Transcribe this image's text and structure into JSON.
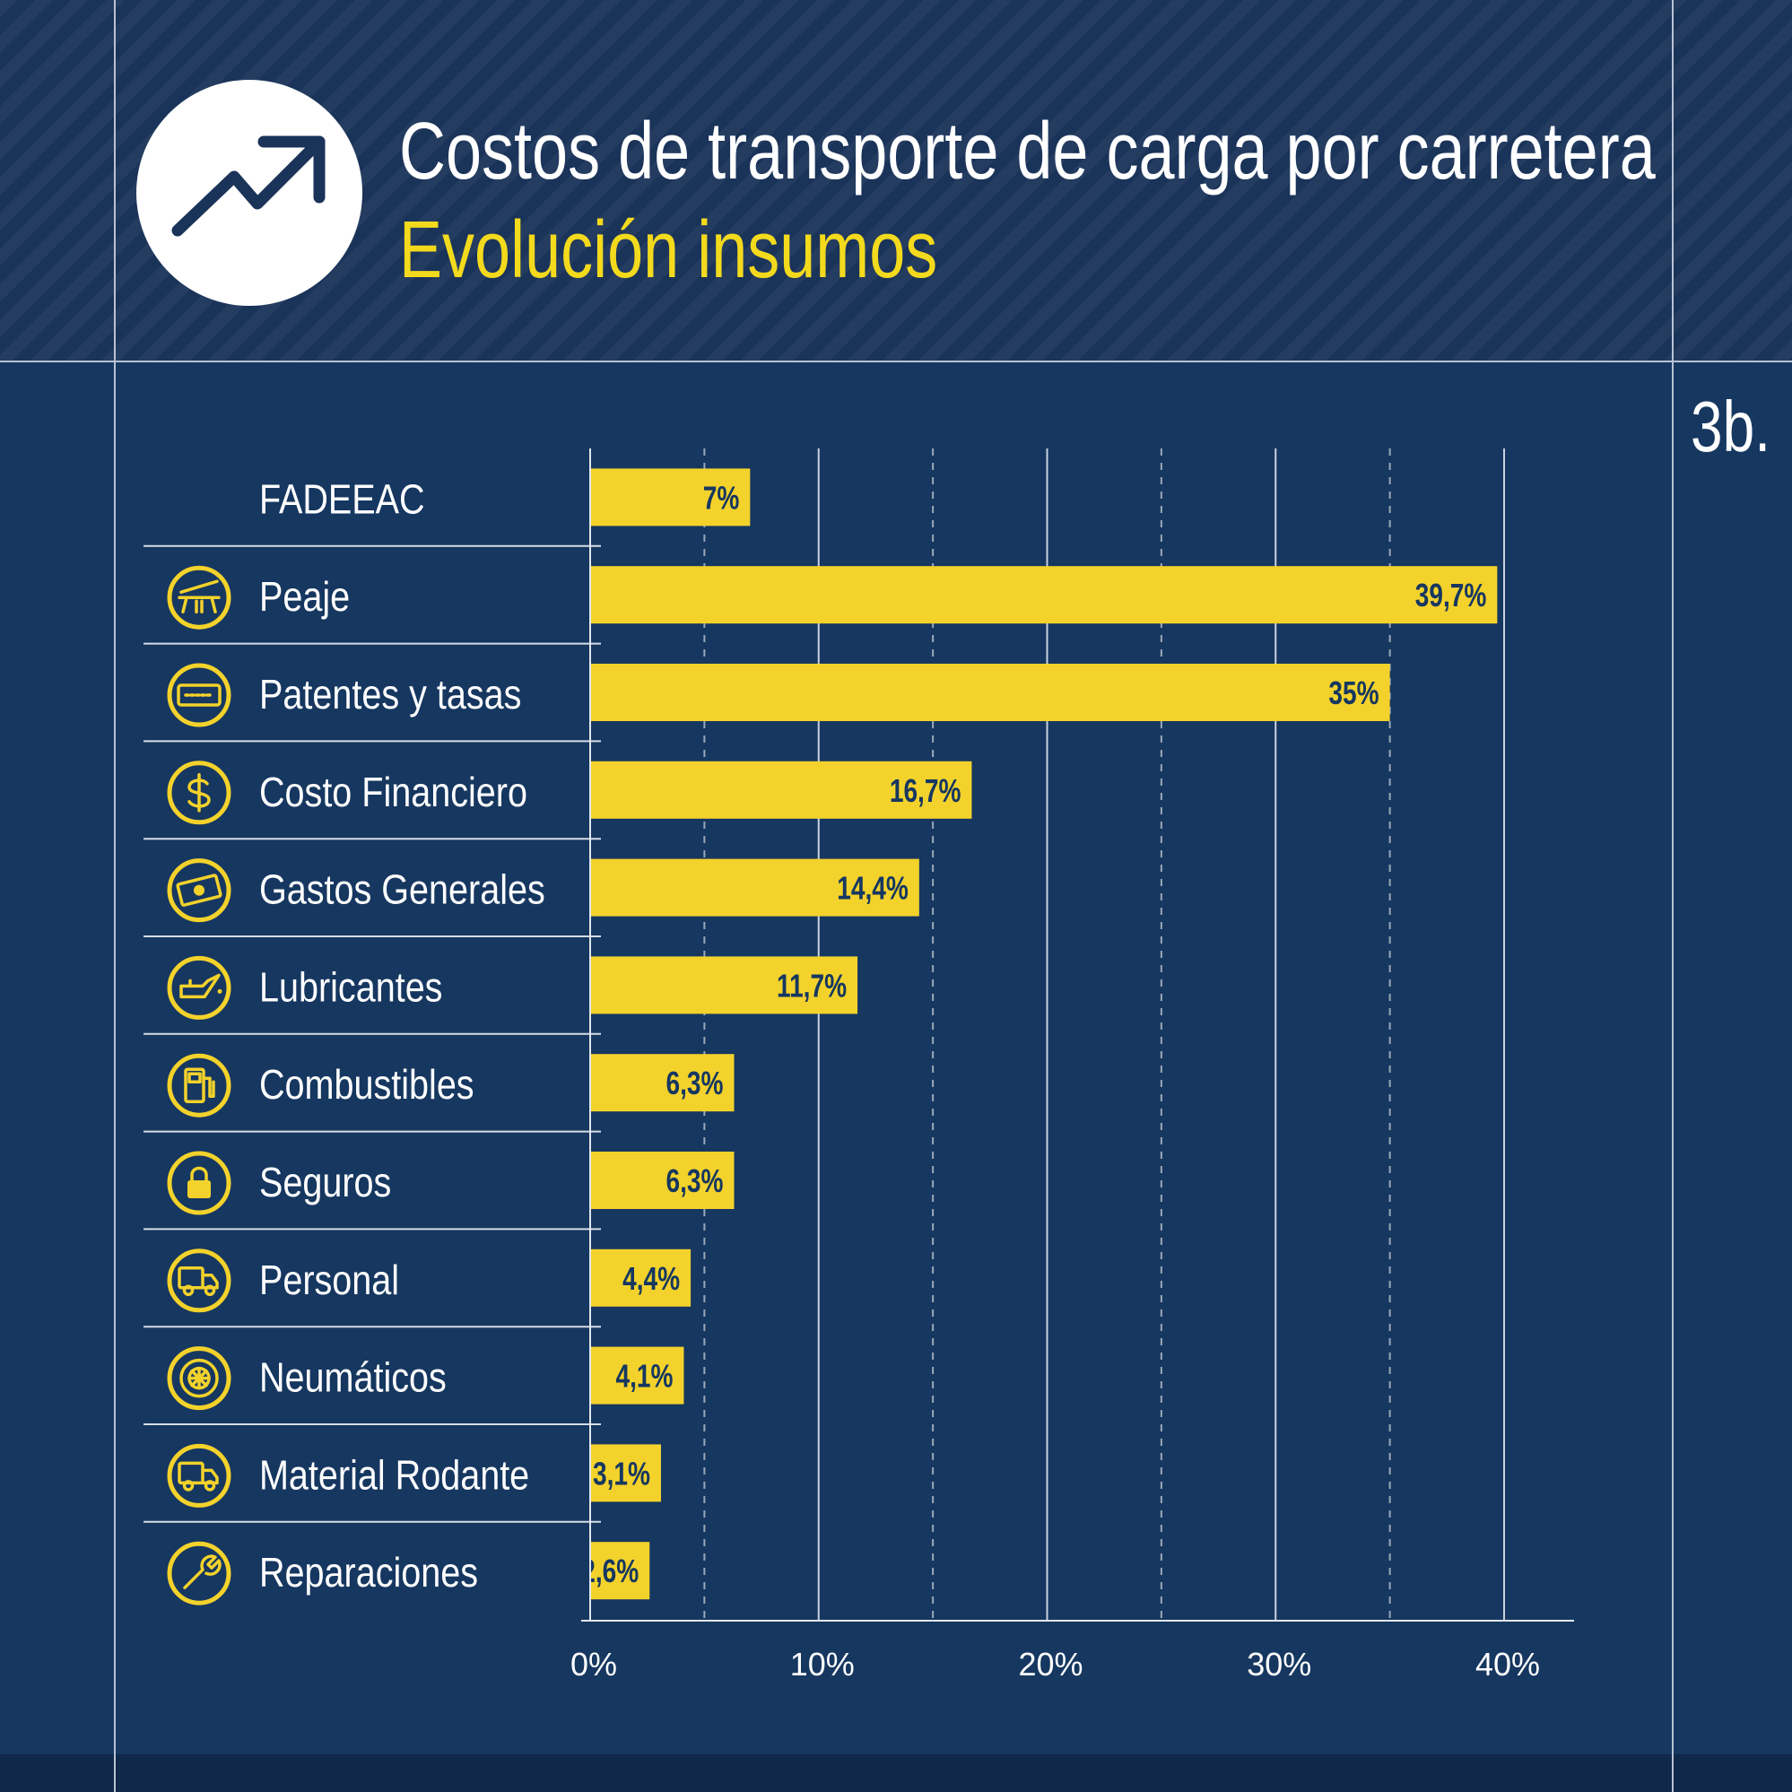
{
  "header": {
    "title": "Costos de transporte de carga por carretera",
    "subtitle": "Evolución insumos",
    "figure_id": "3b.",
    "logo_icon": "trending-up-icon"
  },
  "colors": {
    "background": "#163760",
    "header_background": "#1a3359",
    "bar": "#f3d22b",
    "accent_text": "#f3da1d",
    "text": "#ffffff",
    "bar_label": "#163760"
  },
  "chart_data": {
    "type": "bar",
    "orientation": "horizontal",
    "categories": [
      "FADEEAC",
      "Peaje",
      "Patentes y tasas",
      "Costo Financiero",
      "Gastos Generales",
      "Lubricantes",
      "Combustibles",
      "Seguros",
      "Personal",
      "Neumáticos",
      "Material Rodante",
      "Reparaciones"
    ],
    "icons": [
      "",
      "toll-barrier-icon",
      "license-plate-icon",
      "dollar-coin-icon",
      "banknote-icon",
      "oil-can-icon",
      "fuel-pump-icon",
      "padlock-icon",
      "truck-icon",
      "tire-icon",
      "truck-icon",
      "wrench-icon"
    ],
    "values": [
      7,
      39.7,
      35,
      16.7,
      14.4,
      11.7,
      6.3,
      6.3,
      4.4,
      4.1,
      3.1,
      2.6
    ],
    "data_labels": [
      "7%",
      "39,7%",
      "35%",
      "16,7%",
      "14,4%",
      "11,7%",
      "6,3%",
      "6,3%",
      "4,4%",
      "4,1%",
      "3,1%",
      "2,6%"
    ],
    "xlim": [
      0,
      40
    ],
    "x_ticks": [
      0,
      10,
      20,
      30,
      40
    ],
    "x_tick_labels": [
      "0%",
      "10%",
      "20%",
      "30%",
      "40%"
    ],
    "minor_ticks": [
      5,
      15,
      25,
      35
    ],
    "grid": true,
    "title": "Costos de transporte de carga por carretera",
    "subtitle": "Evolución insumos",
    "xlabel": "",
    "ylabel": ""
  }
}
